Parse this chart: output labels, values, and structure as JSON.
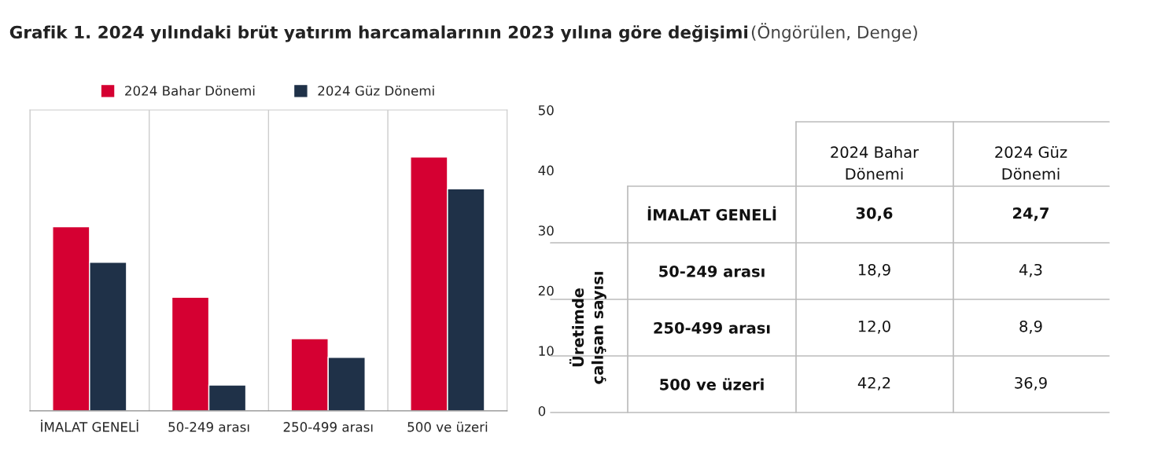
{
  "chart_data": [
    {
      "type": "bar",
      "title": "Grafik 1. 2024 yılındaki brüt yatırım harcamalarının 2023 yılına göre değişimi",
      "categories": [
        "İMALAT GENELİ",
        "50-249 arası",
        "250-499 arası",
        "500 ve üzeri"
      ],
      "series": [
        {
          "name": "2024 Bahar Dönemi",
          "color": "#d50032",
          "values": [
            30.6,
            18.9,
            12.0,
            42.2
          ]
        },
        {
          "name": "2024 Güz Dönemi",
          "color": "#1f3148",
          "values": [
            24.7,
            4.3,
            8.9,
            36.9
          ]
        }
      ],
      "ylim": [
        0,
        50
      ],
      "yticks": [
        0,
        10,
        20,
        30,
        40,
        50
      ],
      "grid": "x",
      "legend": "top"
    },
    {
      "type": "other",
      "subtitle": "(Öngörülen, Denge)",
      "categories": [
        "2024 Bahar Dönemi",
        "2024 Güz Dönemi"
      ],
      "y_categories": [
        "İMALAT GENELİ",
        "50-249 arası",
        "250-499 arası",
        "500 ve üzeri"
      ],
      "cell_labels": [
        [
          "30,6",
          "24,7"
        ],
        [
          "18,9",
          "4,3"
        ],
        [
          "12,0",
          "8,9"
        ],
        [
          "42,2",
          "36,9"
        ]
      ],
      "annotations": [
        "Üretimde\nçalışan sayısı"
      ]
    }
  ]
}
